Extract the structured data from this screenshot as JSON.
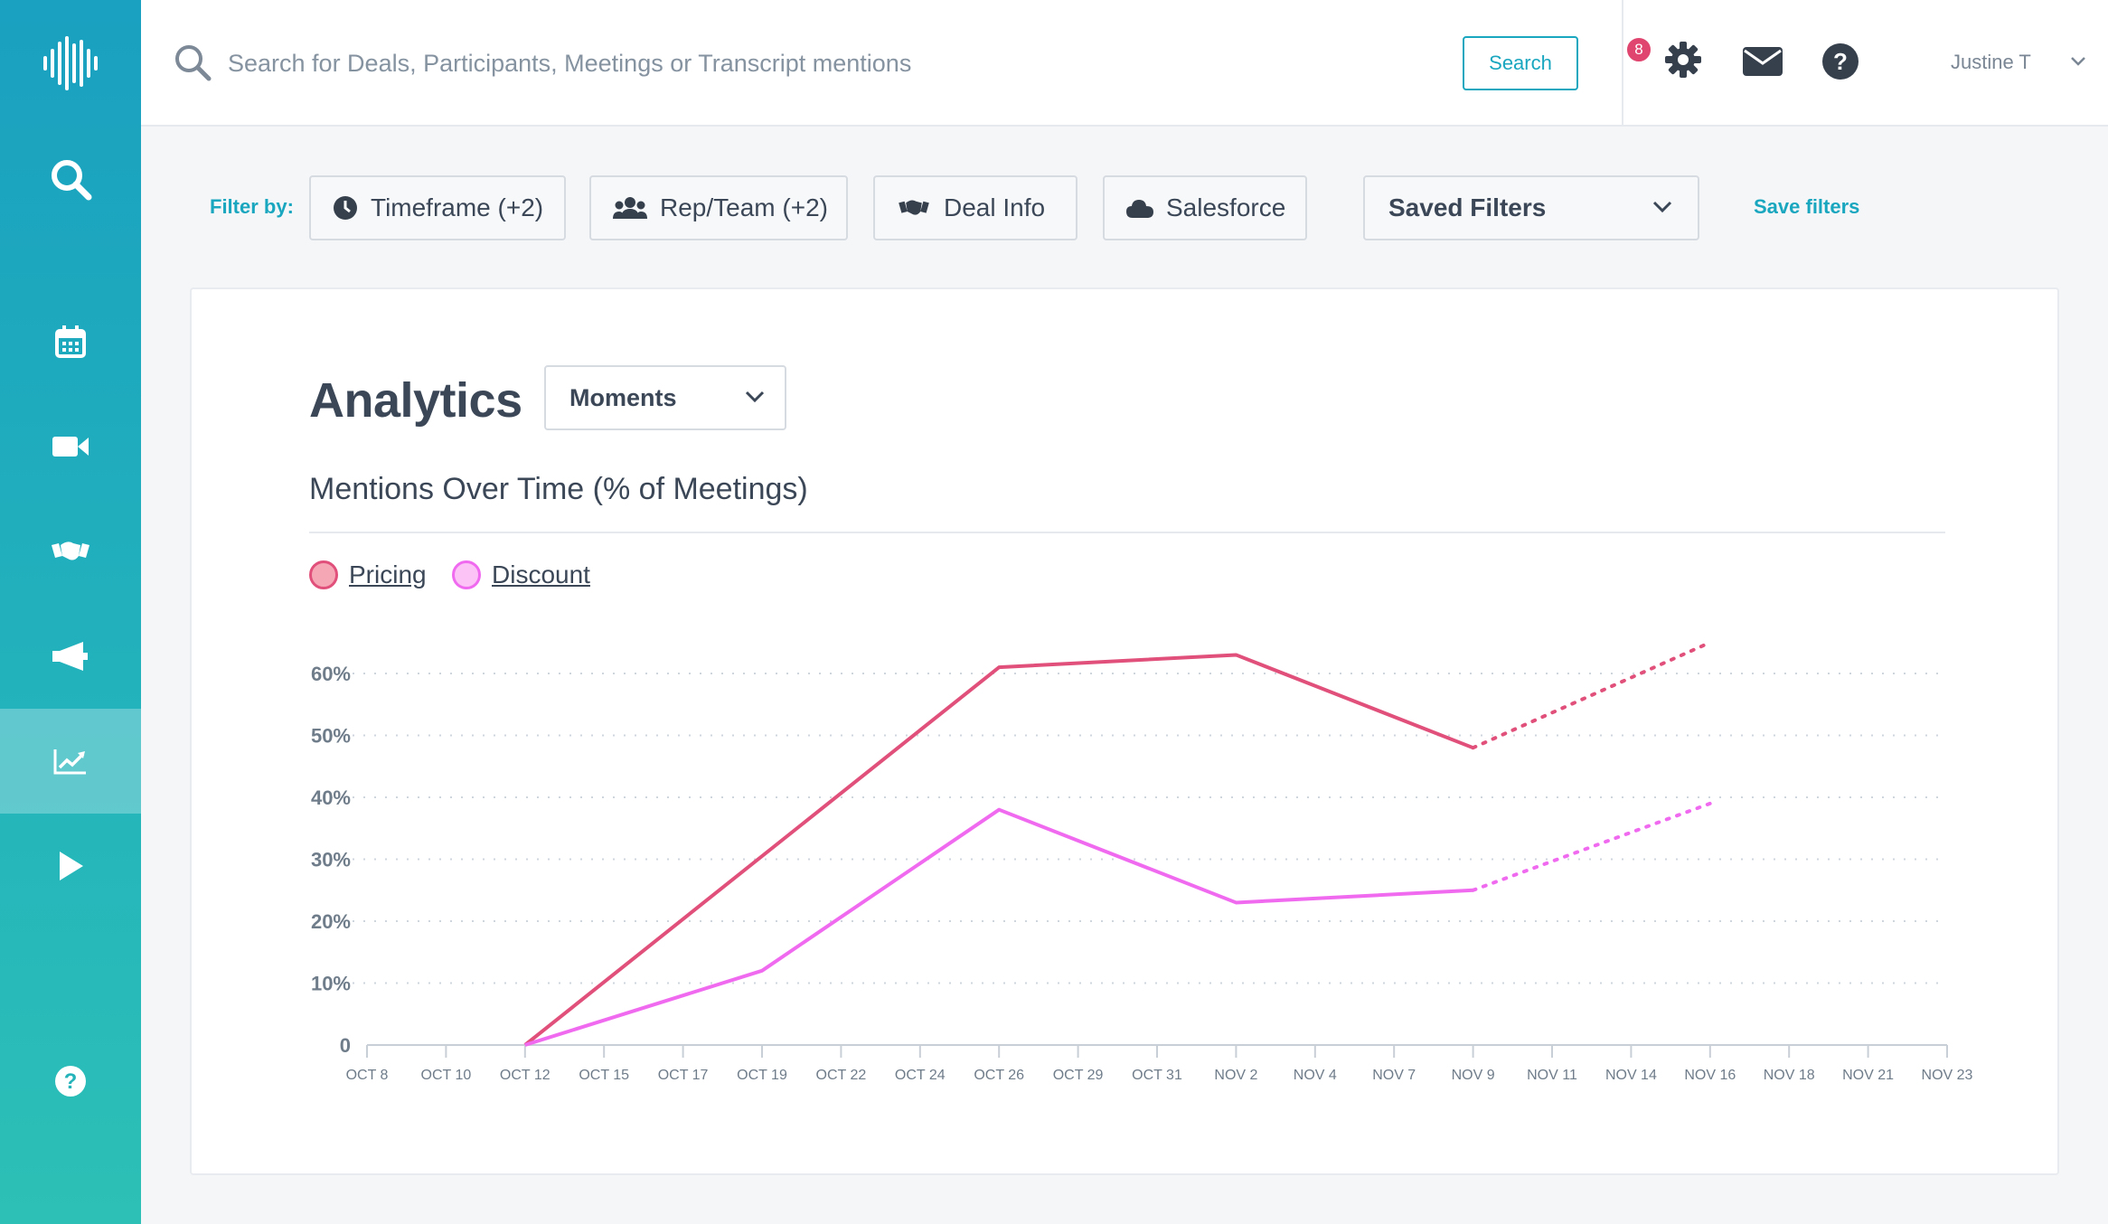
{
  "sidebar": {
    "items": [
      {
        "icon": "waveform-logo-icon"
      },
      {
        "icon": "search-icon"
      },
      {
        "icon": "calendar-icon"
      },
      {
        "icon": "video-camera-icon"
      },
      {
        "icon": "handshake-icon"
      },
      {
        "icon": "megaphone-icon"
      },
      {
        "icon": "analytics-trend-icon",
        "active": true
      },
      {
        "icon": "play-icon"
      },
      {
        "icon": "help-circle-icon"
      }
    ],
    "colors": {
      "gradient_top": "#1aa0c0",
      "gradient_bottom": "#2cc0b6"
    }
  },
  "topbar": {
    "search_placeholder": "Search for Deals, Participants, Meetings or Transcript mentions",
    "search_button": "Search",
    "notification_count": "8",
    "user_name": "Justine T",
    "icons": [
      "settings-gear-icon",
      "mail-icon",
      "help-icon",
      "chevron-down-icon"
    ]
  },
  "filters": {
    "label": "Filter by:",
    "buttons": [
      {
        "label": "Timeframe (+2)",
        "icon": "clock-icon"
      },
      {
        "label": "Rep/Team (+2)",
        "icon": "users-icon"
      },
      {
        "label": "Deal Info",
        "icon": "handshake-icon"
      },
      {
        "label": "Salesforce",
        "icon": "cloud-icon"
      }
    ],
    "saved_filters": "Saved Filters",
    "save_link": "Save filters"
  },
  "analytics": {
    "title": "Analytics",
    "view_select": "Moments"
  },
  "chart_data": {
    "type": "line",
    "title": "Mentions Over Time (% of Meetings)",
    "xlabel": "",
    "ylabel": "",
    "x_ticks": [
      "OCT 8",
      "OCT 10",
      "OCT 12",
      "OCT 15",
      "OCT 17",
      "OCT 19",
      "OCT 22",
      "OCT 24",
      "OCT 26",
      "OCT 29",
      "OCT 31",
      "NOV 2",
      "NOV 4",
      "NOV 7",
      "NOV 9",
      "NOV 11",
      "NOV 14",
      "NOV 16",
      "NOV 18",
      "NOV 21",
      "NOV 23"
    ],
    "y_ticks": [
      "0",
      "10%",
      "20%",
      "30%",
      "40%",
      "50%",
      "60%"
    ],
    "ylim": [
      0,
      60
    ],
    "grid": true,
    "legend_position": "top-left",
    "series": [
      {
        "name": "Pricing",
        "color": "#e0507a",
        "points": [
          {
            "x": "OCT 12",
            "y": 0
          },
          {
            "x": "OCT 26",
            "y": 61
          },
          {
            "x": "NOV 2",
            "y": 63
          },
          {
            "x": "NOV 9",
            "y": 48
          }
        ],
        "projection": [
          {
            "x": "NOV 9",
            "y": 48
          },
          {
            "x": "NOV 16",
            "y": 65
          }
        ]
      },
      {
        "name": "Discount",
        "color": "#f06af0",
        "points": [
          {
            "x": "OCT 12",
            "y": 0
          },
          {
            "x": "OCT 19",
            "y": 12
          },
          {
            "x": "OCT 26",
            "y": 38
          },
          {
            "x": "NOV 2",
            "y": 23
          },
          {
            "x": "NOV 9",
            "y": 25
          }
        ],
        "projection": [
          {
            "x": "NOV 9",
            "y": 25
          },
          {
            "x": "NOV 16",
            "y": 39
          }
        ]
      }
    ]
  }
}
